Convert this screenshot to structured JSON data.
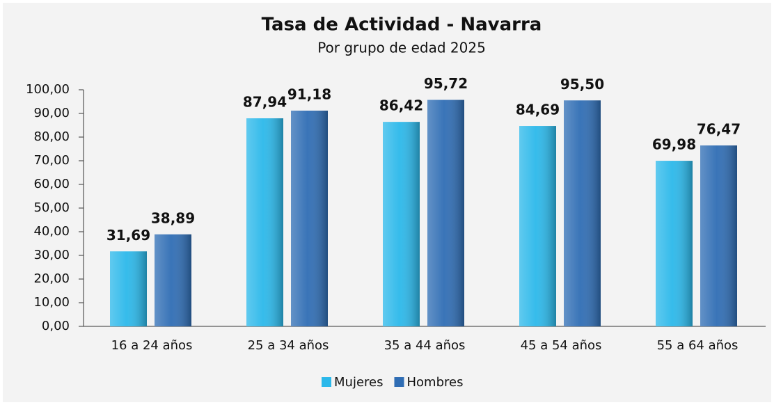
{
  "chart_data": {
    "type": "bar",
    "title": "Tasa de Actividad - Navarra",
    "subtitle": "Por grupo de edad 2025",
    "categories": [
      "16 a 24 años",
      "25 a 34 años",
      "35 a 44 años",
      "45 a 54 años",
      "55 a 64 años"
    ],
    "series": [
      {
        "name": "Mujeres",
        "color": "#2bb8ea",
        "values": [
          31.69,
          87.94,
          86.42,
          84.69,
          69.98
        ],
        "value_labels": [
          "31,69",
          "87,94",
          "86,42",
          "84,69",
          "69,98"
        ]
      },
      {
        "name": "Hombres",
        "color": "#2f6db4",
        "values": [
          38.89,
          91.18,
          95.72,
          95.5,
          76.47
        ],
        "value_labels": [
          "38,89",
          "91,18",
          "95,72",
          "95,50",
          "76,47"
        ]
      }
    ],
    "ylim": [
      0,
      100
    ],
    "yticks": [
      {
        "value": 0,
        "label": "0,00"
      },
      {
        "value": 10,
        "label": "10,00"
      },
      {
        "value": 20,
        "label": "20,00"
      },
      {
        "value": 30,
        "label": "30,00"
      },
      {
        "value": 40,
        "label": "40,00"
      },
      {
        "value": 50,
        "label": "50,00"
      },
      {
        "value": 60,
        "label": "60,00"
      },
      {
        "value": 70,
        "label": "70,00"
      },
      {
        "value": 80,
        "label": "80,00"
      },
      {
        "value": 90,
        "label": "90,00"
      },
      {
        "value": 100,
        "label": "100,00"
      }
    ],
    "legend": "bottom"
  }
}
